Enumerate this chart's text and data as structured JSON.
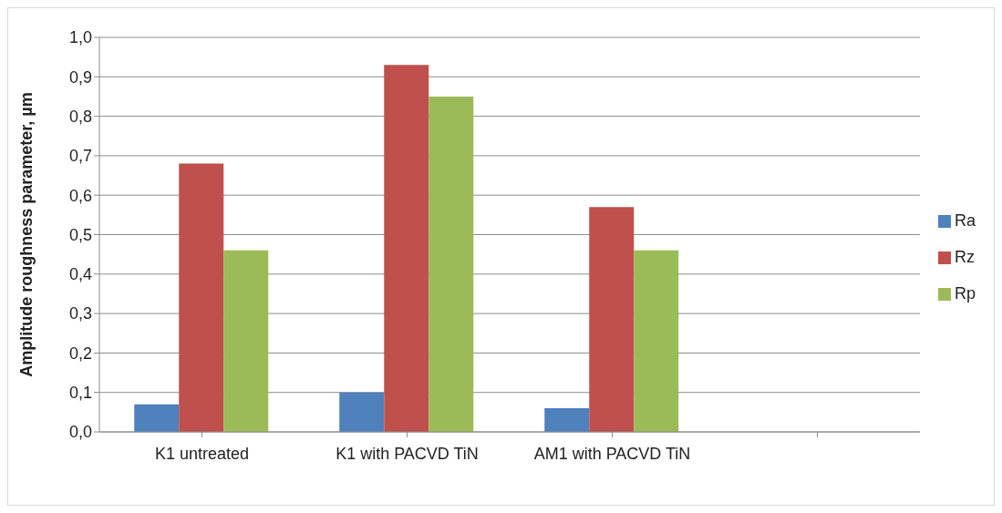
{
  "chart_data": {
    "type": "bar",
    "ylabel": "Amplitude roughness parameter, µm",
    "categories": [
      "K1 untreated",
      "K1 with PACVD TiN",
      "AM1 with PACVD TiN",
      null
    ],
    "series": [
      {
        "name": "Ra",
        "color": "#4f81bd",
        "values": [
          0.07,
          0.1,
          0.06,
          null
        ]
      },
      {
        "name": "Rz",
        "color": "#c0504d",
        "values": [
          0.68,
          0.93,
          0.57,
          null
        ]
      },
      {
        "name": "Rp",
        "color": "#9bbb59",
        "values": [
          0.46,
          0.85,
          0.46,
          null
        ]
      }
    ],
    "ylim": [
      0,
      1
    ],
    "yticks": [
      {
        "value": 0,
        "label": "0,0"
      },
      {
        "value": 0.1,
        "label": "0,1"
      },
      {
        "value": 0.2,
        "label": "0,2"
      },
      {
        "value": 0.3,
        "label": "0,3"
      },
      {
        "value": 0.4,
        "label": "0,4"
      },
      {
        "value": 0.5,
        "label": "0,5"
      },
      {
        "value": 0.6,
        "label": "0,6"
      },
      {
        "value": 0.7,
        "label": "0,7"
      },
      {
        "value": 0.8,
        "label": "0,8"
      },
      {
        "value": 0.9,
        "label": "0,9"
      },
      {
        "value": 1,
        "label": "1,0"
      }
    ],
    "grid": "y",
    "legend": "right"
  }
}
